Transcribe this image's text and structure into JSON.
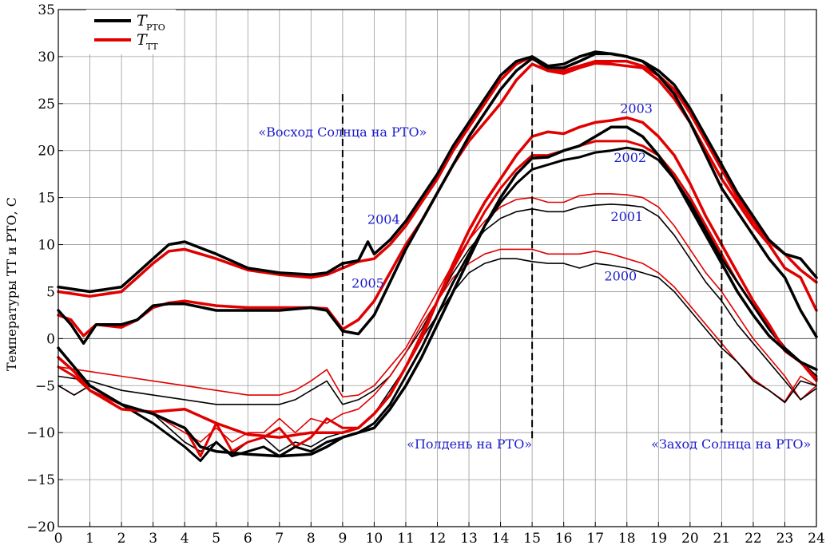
{
  "chart_data": {
    "type": "line",
    "title": "",
    "xlabel": "",
    "ylabel": "Температуры ТТ и РТО, С",
    "xlim": [
      0,
      24
    ],
    "ylim": [
      -20,
      35
    ],
    "xticks": [
      "0",
      "1",
      "2",
      "3",
      "4",
      "5",
      "6",
      "7",
      "8",
      "9",
      "10",
      "11",
      "12",
      "13",
      "14",
      "15",
      "16",
      "17",
      "18",
      "19",
      "20",
      "21",
      "22",
      "23",
      "24"
    ],
    "yticks": [
      "−20",
      "−15",
      "−10",
      "−5",
      "0",
      "5",
      "10",
      "15",
      "20",
      "25",
      "30",
      "35"
    ],
    "grid": true,
    "legend_position": "top-left",
    "legend": [
      {
        "symbol": "T",
        "sub": "РТО",
        "color": "#000000"
      },
      {
        "symbol": "T",
        "sub": "ТТ",
        "color": "#e00000"
      }
    ],
    "vlines": [
      {
        "x": 9,
        "y_from": 26,
        "y_to": -6
      },
      {
        "x": 15,
        "y_from": 27,
        "y_to": -11
      },
      {
        "x": 21,
        "y_from": 26,
        "y_to": -10
      }
    ],
    "annotations": [
      {
        "text": "«Восход Солнца на РТО»",
        "x": 9.0,
        "y": 21.5,
        "anchor": "middle"
      },
      {
        "text": "«Полдень на РТО»",
        "x": 15.0,
        "y": -11.7,
        "anchor": "end"
      },
      {
        "text": "«Заход Солнца на РТО»",
        "x": 21.3,
        "y": -11.7,
        "anchor": "middle"
      },
      {
        "text": "2004",
        "x": 10.3,
        "y": 12.2,
        "anchor": "middle"
      },
      {
        "text": "2005",
        "x": 9.8,
        "y": 5.4,
        "anchor": "middle"
      },
      {
        "text": "2003",
        "x": 18.3,
        "y": 24.0,
        "anchor": "middle"
      },
      {
        "text": "2002",
        "x": 18.1,
        "y": 18.8,
        "anchor": "middle"
      },
      {
        "text": "2001",
        "x": 18.0,
        "y": 12.5,
        "anchor": "middle"
      },
      {
        "text": "2000",
        "x": 17.8,
        "y": 6.2,
        "anchor": "middle"
      }
    ],
    "series": [
      {
        "name": "2004 ТТ",
        "color": "#e00000",
        "width": 3.5,
        "x": [
          0,
          1,
          2,
          2.5,
          3,
          3.5,
          4,
          5,
          6,
          7,
          8,
          8.5,
          9,
          9.5,
          10,
          10.5,
          11,
          11.5,
          12,
          12.5,
          13,
          13.5,
          14,
          14.5,
          15,
          15.5,
          16,
          16.5,
          17,
          17.5,
          18,
          18.5,
          19,
          19.5,
          20,
          20.5,
          21,
          21.5,
          22,
          22.5,
          23,
          23.5,
          24
        ],
        "y": [
          5,
          4.5,
          5,
          6.5,
          8,
          9.3,
          9.5,
          8.5,
          7.3,
          6.8,
          6.5,
          6.8,
          7.5,
          8.2,
          8.5,
          10,
          12,
          14.5,
          17,
          20,
          22.5,
          25,
          27.5,
          29.2,
          30,
          28.5,
          28.5,
          29,
          29.5,
          29.5,
          29.5,
          29,
          28,
          26.5,
          24,
          21,
          18,
          15,
          12.5,
          10.3,
          9,
          7.3,
          6
        ]
      },
      {
        "name": "2004 РТО",
        "color": "#000000",
        "width": 3.5,
        "x": [
          0,
          1,
          2,
          2.5,
          3,
          3.5,
          4,
          5,
          6,
          7,
          8,
          8.5,
          9,
          9.5,
          9.8,
          10,
          10.5,
          11,
          11.5,
          12,
          12.5,
          13,
          13.5,
          14,
          14.5,
          15,
          15.5,
          16,
          16.5,
          17,
          17.5,
          18,
          18.5,
          19,
          19.5,
          20,
          20.5,
          21,
          21.5,
          22,
          22.5,
          23,
          23.5,
          24
        ],
        "y": [
          5.5,
          5,
          5.5,
          7,
          8.5,
          10,
          10.3,
          9,
          7.5,
          7,
          6.8,
          7,
          8,
          8.3,
          10.3,
          9,
          10.5,
          12.5,
          15,
          17.5,
          20.5,
          23,
          25.5,
          28,
          29.5,
          30,
          29,
          29.2,
          30,
          30.5,
          30.3,
          30,
          29.5,
          28.5,
          27,
          24.5,
          21.5,
          18.5,
          15.5,
          13,
          10.5,
          9,
          8.5,
          6.5
        ]
      },
      {
        "name": "2005 ТТ",
        "color": "#e00000",
        "width": 3.5,
        "x": [
          0,
          0.4,
          0.8,
          1.2,
          2,
          2.5,
          3,
          3.5,
          4,
          5,
          6,
          7,
          8,
          8.5,
          9,
          9.5,
          10,
          10.5,
          11,
          11.5,
          12,
          12.5,
          13,
          13.5,
          14,
          14.5,
          15,
          15.5,
          16,
          16.5,
          17,
          17.5,
          18,
          18.5,
          19,
          19.5,
          20,
          20.5,
          21,
          21.5,
          22,
          22.5,
          23,
          23.5,
          24
        ],
        "y": [
          2.5,
          2,
          0.3,
          1.5,
          1.2,
          2,
          3.3,
          3.8,
          4,
          3.5,
          3.3,
          3.3,
          3.3,
          3.2,
          1,
          2,
          4,
          7,
          10,
          12.5,
          15.5,
          18.5,
          21,
          23,
          25,
          27.5,
          29.2,
          28.5,
          28.2,
          28.8,
          29.3,
          29.2,
          29,
          28.8,
          27.5,
          25.5,
          23,
          20,
          17,
          14.5,
          12,
          10,
          7.5,
          6.5,
          3
        ]
      },
      {
        "name": "2005 РТО",
        "color": "#000000",
        "width": 3.5,
        "x": [
          0,
          0.4,
          0.8,
          1.2,
          2,
          2.5,
          3,
          3.5,
          4,
          5,
          6,
          7,
          8,
          8.5,
          9,
          9.5,
          10,
          10.5,
          11,
          11.5,
          12,
          12.5,
          13,
          13.5,
          14,
          14.5,
          15,
          15.5,
          16,
          16.5,
          17,
          17.5,
          18,
          18.5,
          19,
          19.5,
          20,
          20.5,
          21,
          21.5,
          22,
          22.5,
          23,
          23.5,
          24
        ],
        "y": [
          3,
          1.5,
          -0.5,
          1.5,
          1.5,
          2,
          3.5,
          3.7,
          3.7,
          3,
          3,
          3,
          3.3,
          3,
          0.8,
          0.5,
          2.5,
          6,
          9.5,
          12.5,
          15.5,
          18.5,
          21.5,
          24,
          26.5,
          28.5,
          29.8,
          28.8,
          28.8,
          29.5,
          30.3,
          30.3,
          30,
          29.5,
          28,
          26,
          23,
          19.5,
          16,
          13.5,
          11,
          8.5,
          6.5,
          3,
          0.2
        ]
      },
      {
        "name": "2003 ТТ",
        "color": "#e00000",
        "width": 3.5,
        "x": [
          0,
          0.5,
          1,
          2,
          3,
          4,
          5,
          6,
          7,
          8,
          8.5,
          9,
          9.5,
          10,
          10.5,
          11,
          11.5,
          12,
          12.5,
          13,
          13.5,
          14,
          14.5,
          15,
          15.5,
          16,
          16.5,
          17,
          17.5,
          18,
          18.5,
          19,
          19.5,
          20,
          20.5,
          21,
          21.5,
          22,
          22.5,
          23,
          23.5,
          24
        ],
        "y": [
          -2,
          -3.5,
          -5.5,
          -7.5,
          -7.8,
          -7.5,
          -9,
          -10.2,
          -10.5,
          -10,
          -10,
          -10,
          -9.5,
          -8,
          -6,
          -3,
          0,
          4,
          8,
          11.5,
          14.5,
          17,
          19.5,
          21.5,
          22,
          21.8,
          22.5,
          23,
          23.2,
          23.5,
          23,
          21.5,
          19.5,
          16.5,
          13,
          10,
          7,
          4,
          1.5,
          -1.3,
          -2.5,
          -4.3
        ]
      },
      {
        "name": "2003 РТО",
        "color": "#000000",
        "width": 3.5,
        "x": [
          0,
          0.5,
          1,
          2,
          3,
          4,
          4.5,
          5,
          6,
          7,
          8,
          8.5,
          9,
          9.5,
          10,
          10.5,
          11,
          11.5,
          12,
          12.5,
          13,
          13.5,
          14,
          14.5,
          15,
          15.5,
          16,
          16.5,
          17,
          17.5,
          18,
          18.5,
          19,
          19.5,
          20,
          20.5,
          21,
          21.5,
          22,
          22.5,
          23,
          23.5,
          24
        ],
        "y": [
          -1,
          -3,
          -5,
          -7,
          -8,
          -9.5,
          -11.5,
          -12,
          -12.3,
          -12.5,
          -12.3,
          -11.5,
          -10.5,
          -10,
          -9.5,
          -7.5,
          -5,
          -2,
          1.5,
          5,
          8.5,
          12,
          15,
          17.5,
          19.2,
          19.3,
          20,
          20.5,
          21.5,
          22.5,
          22.5,
          21.5,
          19.5,
          17,
          14,
          11,
          8,
          5,
          2.5,
          0.3,
          -1.2,
          -2.5,
          -3.3
        ]
      },
      {
        "name": "2002 ТТ",
        "color": "#e00000",
        "width": 3,
        "x": [
          0,
          0.5,
          1,
          2,
          3,
          4,
          4.5,
          5,
          5.5,
          6,
          6.5,
          7,
          7.5,
          8,
          8.5,
          9,
          9.5,
          10,
          10.5,
          11,
          11.5,
          12,
          12.5,
          13,
          13.5,
          14,
          14.5,
          15,
          15.5,
          16,
          16.5,
          17,
          17.5,
          18,
          18.5,
          19,
          19.5,
          20,
          20.5,
          21,
          21.5,
          22,
          22.5,
          23,
          23.5,
          24
        ],
        "y": [
          -3,
          -4,
          -5.5,
          -7,
          -8,
          -9.5,
          -12.5,
          -9,
          -12,
          -11,
          -10.5,
          -9.5,
          -11.5,
          -10.5,
          -8.5,
          -9.5,
          -9.5,
          -8,
          -6,
          -3,
          0.5,
          4,
          7.5,
          10.5,
          13.5,
          16,
          18,
          19.5,
          19.5,
          20,
          20.5,
          21,
          21,
          21,
          20.5,
          19.5,
          17.5,
          15,
          12,
          9,
          6,
          3.5,
          1.2,
          -1,
          -2.5,
          -4.5
        ]
      },
      {
        "name": "2002 РТО",
        "color": "#000000",
        "width": 3,
        "x": [
          0,
          0.5,
          1,
          2,
          3,
          4,
          4.5,
          5,
          5.5,
          6,
          6.5,
          7,
          7.5,
          8,
          8.5,
          9,
          9.5,
          10,
          10.5,
          11,
          11.5,
          12,
          12.5,
          13,
          13.5,
          14,
          14.5,
          15,
          15.5,
          16,
          16.5,
          17,
          17.5,
          18,
          18.5,
          19,
          19.5,
          20,
          20.5,
          21,
          21.5,
          22,
          22.5,
          23,
          23.5,
          24
        ],
        "y": [
          -2,
          -3.5,
          -5,
          -7,
          -9,
          -11.5,
          -13,
          -11,
          -12.5,
          -12,
          -11.5,
          -12.5,
          -11.5,
          -12,
          -11,
          -10.5,
          -10,
          -9,
          -7,
          -4,
          -1,
          2.5,
          6,
          9,
          12,
          14.5,
          16.5,
          18,
          18.5,
          19,
          19.3,
          19.8,
          20,
          20.3,
          20,
          19,
          17,
          14.5,
          11.5,
          8.5,
          6,
          3.5,
          1,
          -1,
          -2.5,
          -4
        ]
      },
      {
        "name": "2001 ТТ",
        "color": "#e00000",
        "width": 1.6,
        "x": [
          0,
          1,
          2,
          3,
          4,
          5,
          6,
          7,
          7.5,
          8,
          8.5,
          9,
          9.5,
          10,
          10.5,
          11,
          11.5,
          12,
          12.5,
          13,
          13.5,
          14,
          14.5,
          15,
          15.5,
          16,
          16.5,
          17,
          17.5,
          18,
          18.5,
          19,
          19.5,
          20,
          20.5,
          21,
          21.5,
          22,
          22.5,
          23,
          23.5,
          24
        ],
        "y": [
          -3,
          -3.5,
          -4,
          -4.5,
          -5,
          -5.5,
          -6,
          -6,
          -5.5,
          -4.5,
          -3.3,
          -6.2,
          -6,
          -5,
          -3,
          -1,
          2,
          5,
          8,
          10.5,
          12.5,
          14,
          14.8,
          15,
          14.5,
          14.5,
          15.2,
          15.4,
          15.4,
          15.3,
          15,
          14,
          12,
          9.5,
          7,
          5,
          2.5,
          0,
          -2,
          -4,
          -6.5,
          -5
        ]
      },
      {
        "name": "2001 РТО",
        "color": "#000000",
        "width": 1.6,
        "x": [
          0,
          1,
          2,
          3,
          4,
          5,
          6,
          7,
          7.5,
          8,
          8.5,
          9,
          9.5,
          10,
          10.5,
          11,
          11.5,
          12,
          12.5,
          13,
          13.5,
          14,
          14.5,
          15,
          15.5,
          16,
          16.5,
          17,
          17.5,
          18,
          18.5,
          19,
          19.5,
          20,
          20.5,
          21,
          21.5,
          22,
          22.5,
          23,
          23.5,
          24
        ],
        "y": [
          -4,
          -4.5,
          -5.5,
          -6,
          -6.5,
          -7,
          -7,
          -7,
          -6.5,
          -5.5,
          -4.5,
          -7,
          -6.5,
          -5.5,
          -4,
          -1.5,
          1,
          4,
          7,
          9.5,
          11.5,
          12.8,
          13.5,
          13.8,
          13.5,
          13.5,
          14,
          14.2,
          14.3,
          14.2,
          14,
          13,
          11,
          8.5,
          6,
          4,
          1.5,
          -0.5,
          -2.5,
          -4.5,
          -6.5,
          -5.3
        ]
      },
      {
        "name": "2000 ТТ",
        "color": "#e00000",
        "width": 1.6,
        "x": [
          0,
          0.5,
          1,
          2,
          3,
          4,
          4.5,
          5,
          5.5,
          6,
          6.5,
          7,
          7.5,
          8,
          8.5,
          9,
          9.5,
          10,
          10.5,
          11,
          11.5,
          12,
          12.5,
          13,
          13.5,
          14,
          14.5,
          15,
          15.5,
          16,
          16.5,
          17,
          17.5,
          18,
          18.5,
          19,
          19.5,
          20,
          20.5,
          21,
          21.5,
          22,
          22.5,
          23,
          23.5,
          24
        ],
        "y": [
          -5,
          -6,
          -5,
          -7,
          -8,
          -10,
          -11,
          -9.5,
          -11,
          -10,
          -10,
          -8.5,
          -10,
          -8.5,
          -9,
          -8,
          -7.5,
          -6,
          -4,
          -1.5,
          1.5,
          4,
          6.5,
          8,
          9,
          9.5,
          9.5,
          9.5,
          9,
          9,
          9,
          9.3,
          9,
          8.5,
          8,
          7,
          5.5,
          3.5,
          1.5,
          -0.5,
          -2.5,
          -4.3,
          -5.5,
          -6.7,
          -4,
          -5
        ]
      },
      {
        "name": "2000 РТО",
        "color": "#000000",
        "width": 1.6,
        "x": [
          0,
          0.5,
          1,
          2,
          3,
          4,
          4.5,
          5,
          5.5,
          6,
          6.5,
          7,
          7.5,
          8,
          8.5,
          9,
          9.5,
          10,
          10.5,
          11,
          11.5,
          12,
          12.5,
          13,
          13.5,
          14,
          14.5,
          15,
          15.5,
          16,
          16.5,
          17,
          17.5,
          18,
          18.5,
          19,
          19.5,
          20,
          20.5,
          21,
          21.5,
          22,
          22.5,
          23,
          23.5,
          24
        ],
        "y": [
          -5,
          -6,
          -5,
          -7,
          -8,
          -11,
          -12,
          -11,
          -12.3,
          -11,
          -10.5,
          -12,
          -11,
          -11.5,
          -10.5,
          -10,
          -9.5,
          -8,
          -5.5,
          -3,
          0,
          2.5,
          5,
          7,
          8,
          8.5,
          8.5,
          8.2,
          8,
          8,
          7.5,
          8,
          7.8,
          7.5,
          7,
          6.5,
          5,
          3,
          1,
          -1,
          -2.5,
          -4.5,
          -5.5,
          -6.8,
          -4.5,
          -5
        ]
      }
    ]
  }
}
